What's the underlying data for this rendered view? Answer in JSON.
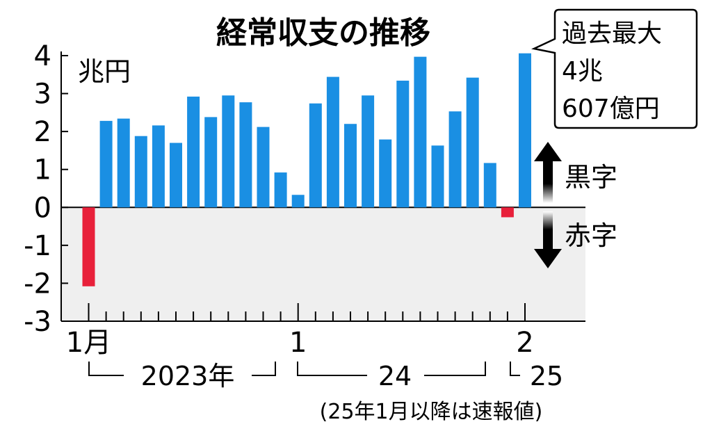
{
  "chart_data": {
    "type": "bar",
    "title": "経常収支の推移",
    "ylabel": "兆円",
    "ylim": [
      -3,
      4
    ],
    "yticks": [
      "4",
      "3",
      "2",
      "1",
      "0",
      "-1",
      "-2",
      "-3"
    ],
    "x_tick_labels": [
      {
        "label": "1月",
        "month_index": 0
      },
      {
        "label": "1",
        "month_index": 12
      },
      {
        "label": "2",
        "month_index": 25
      }
    ],
    "categories": [
      "2023-01",
      "2023-02",
      "2023-03",
      "2023-04",
      "2023-05",
      "2023-06",
      "2023-07",
      "2023-08",
      "2023-09",
      "2023-10",
      "2023-11",
      "2023-12",
      "2024-01",
      "2024-02",
      "2024-03",
      "2024-04",
      "2024-05",
      "2024-06",
      "2024-07",
      "2024-08",
      "2024-09",
      "2024-10",
      "2024-11",
      "2024-12",
      "2025-01",
      "2025-02"
    ],
    "values": [
      -2.08,
      2.28,
      2.34,
      1.88,
      2.16,
      1.7,
      2.92,
      2.38,
      2.95,
      2.77,
      2.12,
      0.92,
      0.33,
      2.74,
      3.44,
      2.2,
      2.95,
      1.79,
      3.34,
      3.97,
      1.63,
      2.53,
      3.42,
      1.17,
      -0.26,
      4.0607
    ],
    "positive_color": "#1a8fe3",
    "negative_color": "#e8203a",
    "negative_region_color": "#efefef",
    "year_labels": {
      "y2023": "2023年",
      "y2024": "24",
      "y2025": "25"
    },
    "footnote": "(25年1月以降は速報値)",
    "arrow_labels": {
      "surplus": "黒字",
      "deficit": "赤字"
    },
    "callout": {
      "line1": "過去最大",
      "line2": "4兆",
      "line3": "607億円"
    }
  }
}
